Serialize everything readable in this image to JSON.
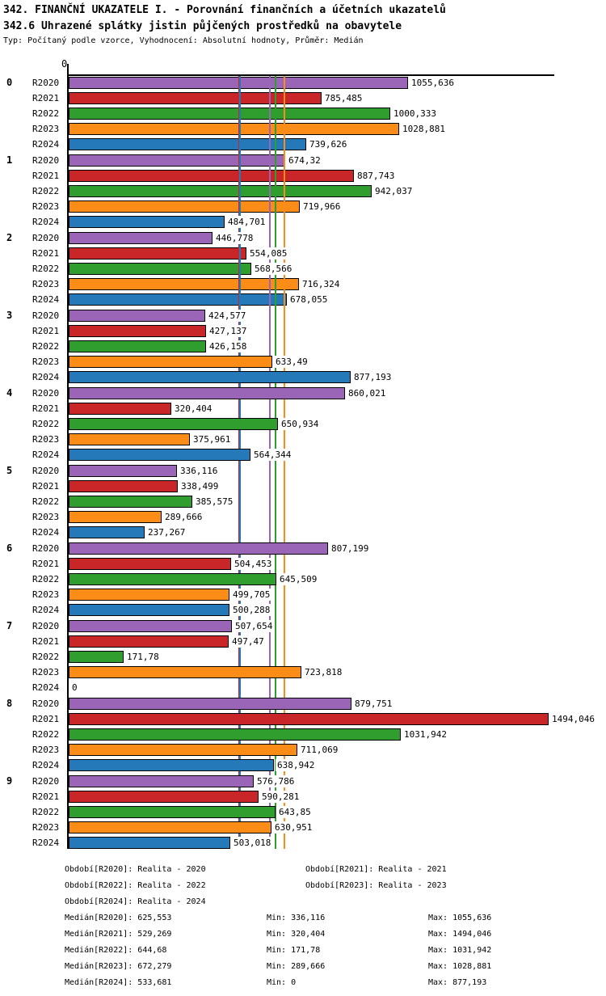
{
  "header": {
    "title_line1": "342. FINANČNÍ UKAZATELE I. - Porovnání finančních a účetních ukazatelů",
    "title_line2": "342.6 Uhrazené splátky jistin půjčených prostředků na obavytele",
    "meta_line": "Typ: Počítaný podle vzorce, Vyhodnocení: Absolutní hodnoty, Průměr: Medián"
  },
  "chart_data": {
    "type": "bar",
    "orientation": "horizontal",
    "x_axis": {
      "origin_tick_label": "0",
      "grid": false
    },
    "series": [
      "R2020",
      "R2021",
      "R2022",
      "R2023",
      "R2024"
    ],
    "series_colors": [
      "#9a64b7",
      "#c9262a",
      "#2f9e2f",
      "#fb8c17",
      "#2679b8"
    ],
    "groups": [
      {
        "label": "0",
        "values": [
          "1055,636",
          "785,485",
          "1000,333",
          "1028,881",
          "739,626"
        ]
      },
      {
        "label": "1",
        "values": [
          "674,32",
          "887,743",
          "942,037",
          "719,966",
          "484,701"
        ]
      },
      {
        "label": "2",
        "values": [
          "446,778",
          "554,085",
          "568,566",
          "716,324",
          "678,055"
        ]
      },
      {
        "label": "3",
        "values": [
          "424,577",
          "427,137",
          "426,158",
          "633,49",
          "877,193"
        ]
      },
      {
        "label": "4",
        "values": [
          "860,021",
          "320,404",
          "650,934",
          "375,961",
          "564,344"
        ]
      },
      {
        "label": "5",
        "values": [
          "336,116",
          "338,499",
          "385,575",
          "289,666",
          "237,267"
        ]
      },
      {
        "label": "6",
        "values": [
          "807,199",
          "504,453",
          "645,509",
          "499,705",
          "500,288"
        ]
      },
      {
        "label": "7",
        "values": [
          "507,654",
          "497,47",
          "171,78",
          "723,818",
          "0"
        ]
      },
      {
        "label": "8",
        "values": [
          "879,751",
          "1494,046",
          "1031,942",
          "711,069",
          "638,942"
        ]
      },
      {
        "label": "9",
        "values": [
          "576,786",
          "590,281",
          "643,85",
          "630,951",
          "503,018"
        ]
      }
    ],
    "median_lines": [
      {
        "series": "R2020",
        "value": "625,553",
        "color": "#9a64b7"
      },
      {
        "series": "R2021",
        "value": "529,269",
        "color": "#c9262a"
      },
      {
        "series": "R2022",
        "value": "644,68",
        "color": "#2f9e2f"
      },
      {
        "series": "R2023",
        "value": "672,279",
        "color": "#fb8c17"
      },
      {
        "series": "R2024",
        "value": "533,681",
        "color": "#2679b8"
      }
    ]
  },
  "legend": {
    "periods": [
      "Období[R2020]: Realita - 2020",
      "Období[R2021]: Realita - 2021",
      "Období[R2022]: Realita - 2022",
      "Období[R2023]: Realita - 2023",
      "Období[R2024]: Realita - 2024"
    ],
    "stats": [
      {
        "median": "Medián[R2020]: 625,553",
        "min": "Min: 336,116",
        "max": "Max: 1055,636"
      },
      {
        "median": "Medián[R2021]: 529,269",
        "min": "Min: 320,404",
        "max": "Max: 1494,046"
      },
      {
        "median": "Medián[R2022]: 644,68",
        "min": "Min: 171,78",
        "max": "Max: 1031,942"
      },
      {
        "median": "Medián[R2023]: 672,279",
        "min": "Min: 289,666",
        "max": "Max: 1028,881"
      },
      {
        "median": "Medián[R2024]: 533,681",
        "min": "Min: 0",
        "max": "Max: 877,193"
      }
    ]
  }
}
